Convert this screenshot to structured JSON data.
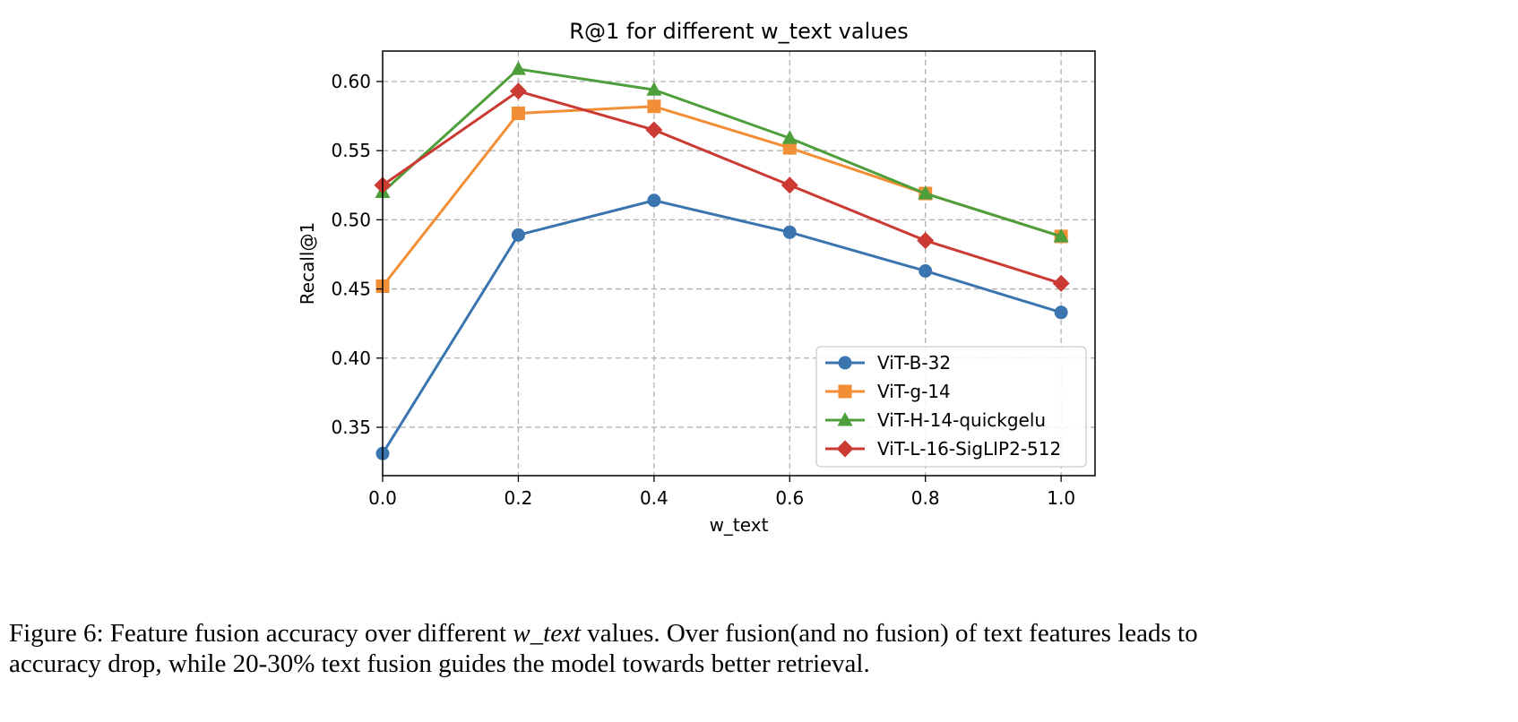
{
  "chart_data": {
    "type": "line",
    "title": "R@1 for different w_text values",
    "xlabel": "w_text",
    "ylabel": "Recall@1",
    "x": [
      0.0,
      0.2,
      0.4,
      0.6,
      0.8,
      1.0
    ],
    "xlim": [
      0.0,
      1.05
    ],
    "ylim": [
      0.315,
      0.622
    ],
    "xticks": [
      "0.0",
      "0.2",
      "0.4",
      "0.6",
      "0.8",
      "1.0"
    ],
    "yticks": [
      "0.35",
      "0.40",
      "0.45",
      "0.50",
      "0.55",
      "0.60"
    ],
    "grid": true,
    "legend_position": "lower-right",
    "series": [
      {
        "name": "ViT-B-32",
        "color": "#3a75b0",
        "marker": "circle",
        "values": [
          0.331,
          0.489,
          0.514,
          0.491,
          0.463,
          0.433
        ]
      },
      {
        "name": "ViT-g-14",
        "color": "#f28e35",
        "marker": "square",
        "values": [
          0.452,
          0.577,
          0.582,
          0.552,
          0.519,
          0.488
        ]
      },
      {
        "name": "ViT-H-14-quickgelu",
        "color": "#4e9e3c",
        "marker": "triangle",
        "values": [
          0.52,
          0.609,
          0.594,
          0.559,
          0.519,
          0.488
        ]
      },
      {
        "name": "ViT-L-16-SigLIP2-512",
        "color": "#cb3a33",
        "marker": "diamond",
        "values": [
          0.525,
          0.593,
          0.565,
          0.525,
          0.485,
          0.454
        ]
      }
    ]
  },
  "caption": {
    "line1_pre": "Figure 6: Feature fusion accuracy over different ",
    "line1_em": "w_text",
    "line1_post": " values. Over fusion(and no fusion) of text features leads to",
    "line2": "accuracy drop, while 20-30% text fusion guides the model towards better retrieval."
  }
}
